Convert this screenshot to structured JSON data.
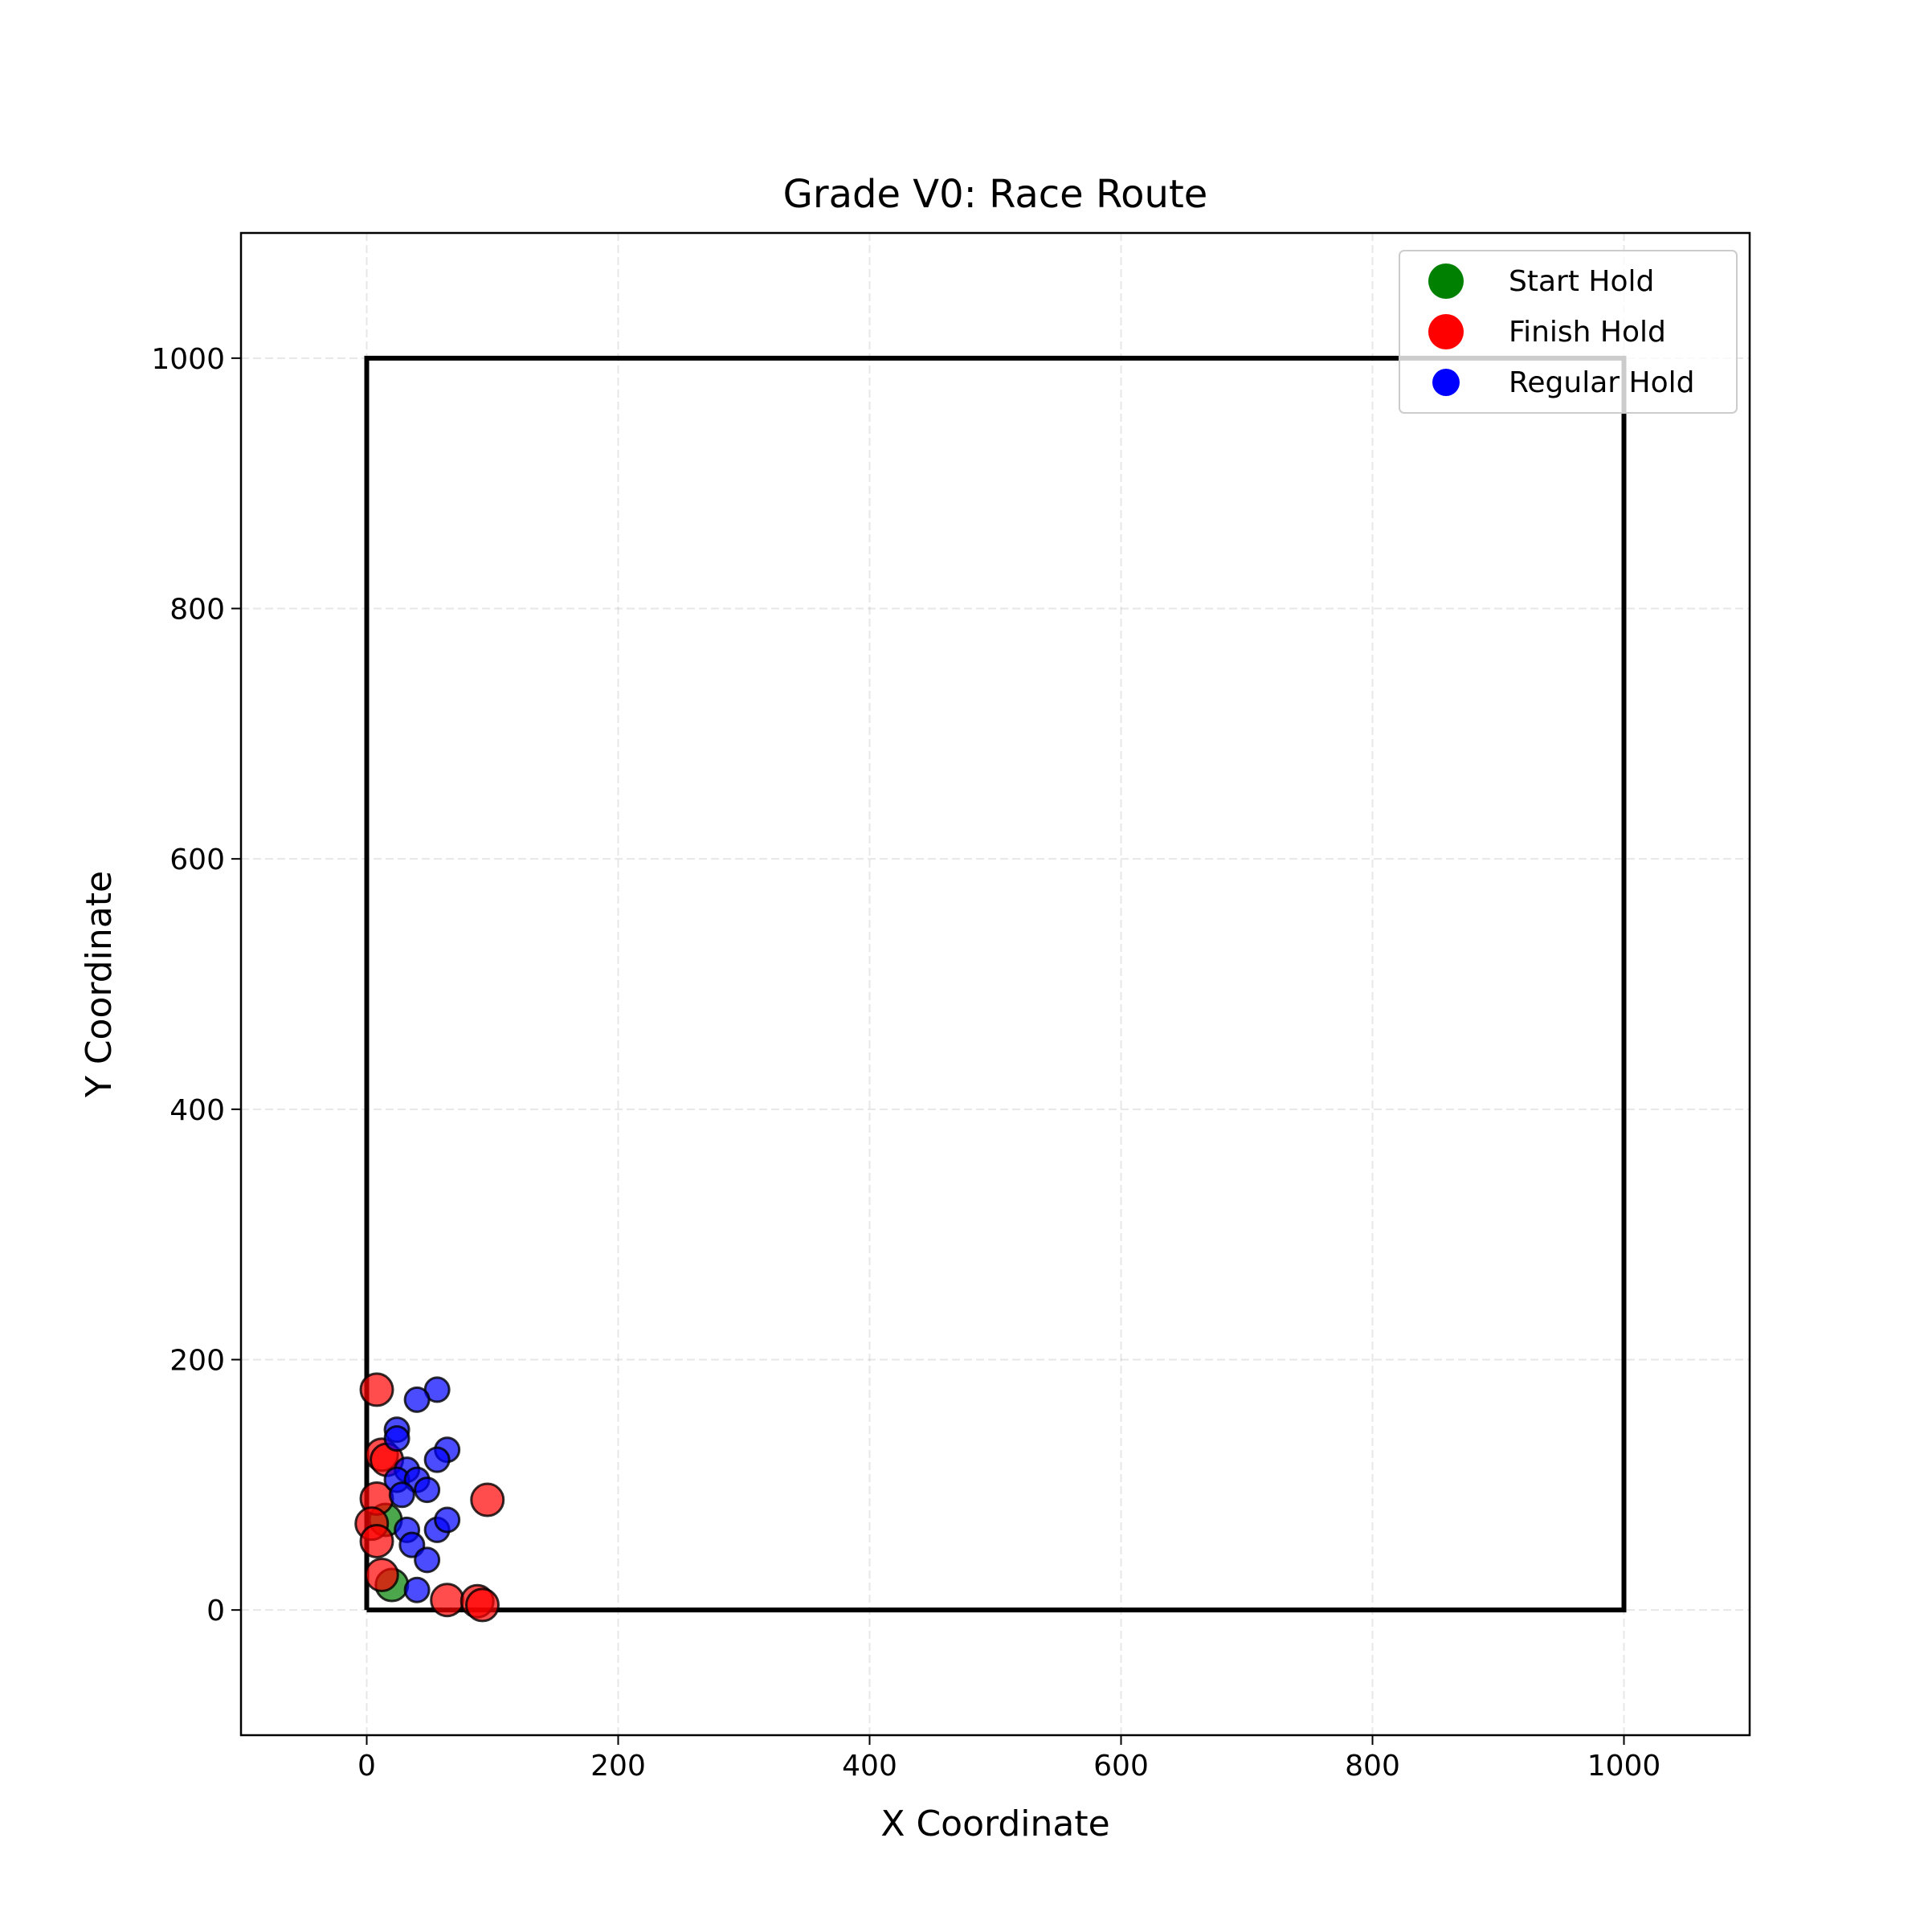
{
  "chart_data": {
    "type": "scatter",
    "title": "Grade V0: Race Route",
    "xlabel": "X Coordinate",
    "ylabel": "Y Coordinate",
    "xlim": [
      -100,
      1100
    ],
    "ylim": [
      -100,
      1100
    ],
    "xticks": [
      0,
      200,
      400,
      600,
      800,
      1000
    ],
    "yticks": [
      0,
      200,
      400,
      600,
      800,
      1000
    ],
    "grid": true,
    "legend_position": "top-right",
    "wall_outline": [
      [
        0,
        0
      ],
      [
        1000,
        0
      ],
      [
        1000,
        1000
      ],
      [
        0,
        1000
      ],
      [
        0,
        0
      ]
    ],
    "series": [
      {
        "name": "Start Hold",
        "color": "#008000",
        "points": [
          [
            15,
            72
          ],
          [
            20,
            20
          ]
        ]
      },
      {
        "name": "Finish Hold",
        "color": "#ff0000",
        "points": [
          [
            8,
            176
          ],
          [
            12,
            124
          ],
          [
            16,
            120
          ],
          [
            8,
            89
          ],
          [
            4,
            69
          ],
          [
            8,
            55
          ],
          [
            12,
            28
          ],
          [
            64,
            8
          ],
          [
            88,
            7
          ],
          [
            92,
            4
          ],
          [
            96,
            88
          ]
        ]
      },
      {
        "name": "Regular Hold",
        "color": "#0000ff",
        "points": [
          [
            56,
            176
          ],
          [
            40,
            168
          ],
          [
            24,
            144
          ],
          [
            24,
            137
          ],
          [
            64,
            128
          ],
          [
            56,
            120
          ],
          [
            32,
            112
          ],
          [
            24,
            104
          ],
          [
            40,
            104
          ],
          [
            48,
            96
          ],
          [
            28,
            92
          ],
          [
            32,
            64
          ],
          [
            56,
            64
          ],
          [
            64,
            72
          ],
          [
            36,
            52
          ],
          [
            48,
            40
          ],
          [
            40,
            16
          ]
        ]
      }
    ]
  }
}
